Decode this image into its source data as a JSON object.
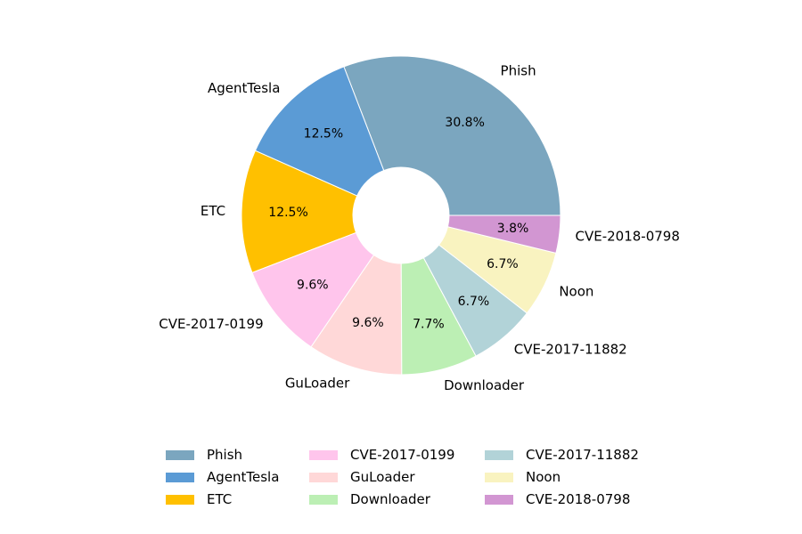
{
  "chart_data": {
    "type": "pie",
    "donut": true,
    "title": "",
    "start_angle": "3 o'clock, counter-clockwise",
    "legend_placement": "bottom",
    "slices": [
      {
        "label": "Phish",
        "value": 30.8,
        "pct_label": "30.8%",
        "color": "#7BA6BF"
      },
      {
        "label": "AgentTesla",
        "value": 12.5,
        "pct_label": "12.5%",
        "color": "#5B9BD5"
      },
      {
        "label": "ETC",
        "value": 12.5,
        "pct_label": "12.5%",
        "color": "#FFC000"
      },
      {
        "label": "CVE-2017-0199",
        "value": 9.6,
        "pct_label": "9.6%",
        "color": "#FFC5EC"
      },
      {
        "label": "GuLoader",
        "value": 9.6,
        "pct_label": "9.6%",
        "color": "#FFD8D8"
      },
      {
        "label": "Downloader",
        "value": 7.7,
        "pct_label": "7.7%",
        "color": "#BCEFB4"
      },
      {
        "label": "CVE-2017-11882",
        "value": 6.7,
        "pct_label": "6.7%",
        "color": "#B2D3D8"
      },
      {
        "label": "Noon",
        "value": 6.7,
        "pct_label": "6.7%",
        "color": "#F9F3C0"
      },
      {
        "label": "CVE-2018-0798",
        "value": 3.8,
        "pct_label": "3.8%",
        "color": "#D296D2"
      }
    ]
  }
}
